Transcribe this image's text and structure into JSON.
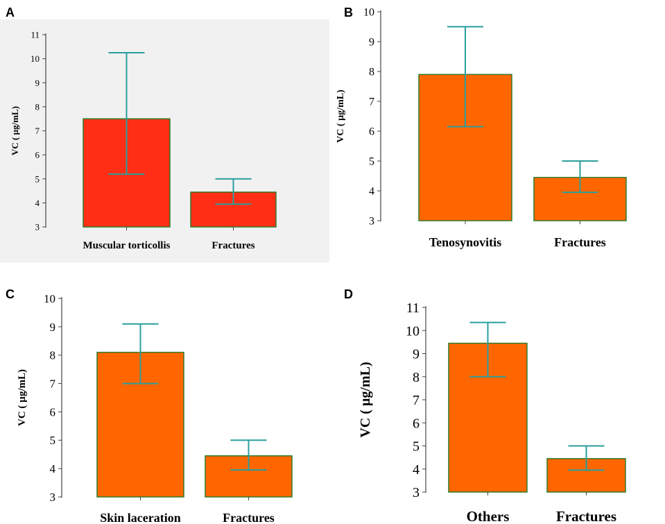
{
  "colors": {
    "panel_a_bg": "#f1f1f1",
    "bar_red": "#ff2e14",
    "bar_orange": "#ff6600",
    "bar_edge": "#2e7d2e",
    "error_bar": "#2a9d9d",
    "axis": "#444444"
  },
  "chart_data": [
    {
      "panel": "A",
      "type": "bar",
      "categories": [
        "Muscular  torticollis",
        "Fractures"
      ],
      "values": [
        7.5,
        4.45
      ],
      "error_low": [
        5.2,
        3.95
      ],
      "error_high": [
        10.25,
        5.0
      ],
      "ylabel": "VC ( µg/mL)",
      "ylim": [
        3,
        11
      ],
      "yticks": [
        "3",
        "4",
        "5",
        "6",
        "7",
        "8",
        "9",
        "10",
        "11"
      ],
      "bar_color": "#ff2e14"
    },
    {
      "panel": "B",
      "type": "bar",
      "categories": [
        "Tenosynovitis",
        "Fractures"
      ],
      "values": [
        7.9,
        4.45
      ],
      "error_low": [
        6.15,
        3.95
      ],
      "error_high": [
        9.5,
        5.0
      ],
      "ylabel": "VC ( µg/mL)",
      "ylim": [
        3,
        10
      ],
      "yticks": [
        "3",
        "4",
        "5",
        "6",
        "7",
        "8",
        "9",
        "10"
      ],
      "bar_color": "#ff6600"
    },
    {
      "panel": "C",
      "type": "bar",
      "categories": [
        "Skin laceration",
        "Fractures"
      ],
      "values": [
        8.1,
        4.45
      ],
      "error_low": [
        7.0,
        3.95
      ],
      "error_high": [
        9.1,
        5.0
      ],
      "ylabel": "VC ( µg/mL)",
      "ylim": [
        3,
        10
      ],
      "yticks": [
        "3",
        "4",
        "5",
        "6",
        "7",
        "8",
        "9",
        "10"
      ],
      "bar_color": "#ff6600"
    },
    {
      "panel": "D",
      "type": "bar",
      "categories": [
        "Others",
        "Fractures"
      ],
      "values": [
        9.45,
        4.45
      ],
      "error_low": [
        8.0,
        3.95
      ],
      "error_high": [
        10.35,
        5.0
      ],
      "ylabel": "VC ( µg/mL)",
      "ylim": [
        3,
        11
      ],
      "yticks": [
        "3",
        "4",
        "5",
        "6",
        "7",
        "8",
        "9",
        "10",
        "11"
      ],
      "bar_color": "#ff6600"
    }
  ]
}
